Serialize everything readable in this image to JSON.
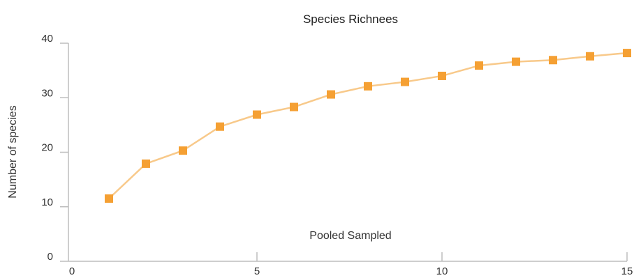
{
  "chart_data": {
    "type": "line",
    "title": "Species Richnees",
    "xlabel": "Pooled Sampled",
    "ylabel": "Number of species",
    "xlim": [
      0,
      15
    ],
    "ylim": [
      0,
      40
    ],
    "xticks": [
      0,
      5,
      10,
      15
    ],
    "yticks": [
      0,
      10,
      20,
      30,
      40
    ],
    "grid": false,
    "series": [
      {
        "color": "#f5a033",
        "line_color": "#f8c98a",
        "marker": "square",
        "x": [
          1,
          2,
          3,
          4,
          5,
          6,
          7,
          8,
          9,
          10,
          11,
          12,
          13,
          14,
          15
        ],
        "y": [
          11.5,
          17.9,
          20.3,
          24.7,
          26.9,
          28.3,
          30.6,
          32.1,
          32.9,
          34.0,
          35.9,
          36.6,
          36.9,
          37.6,
          38.2
        ]
      }
    ]
  }
}
